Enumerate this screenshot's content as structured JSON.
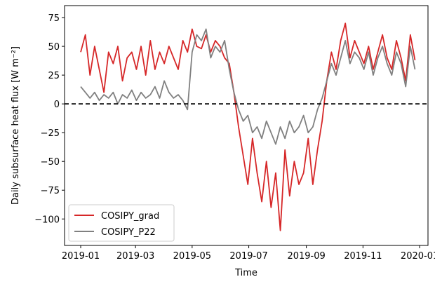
{
  "chart_data": {
    "type": "line",
    "xlabel": "Time",
    "ylabel": "Daily subsurface heat flux [W m⁻²]",
    "x": [
      0,
      5,
      10,
      15,
      20,
      25,
      30,
      35,
      40,
      45,
      50,
      55,
      60,
      65,
      70,
      75,
      80,
      85,
      90,
      95,
      100,
      105,
      110,
      115,
      120,
      125,
      130,
      135,
      140,
      145,
      150,
      155,
      160,
      165,
      170,
      175,
      180,
      185,
      190,
      195,
      200,
      205,
      210,
      215,
      220,
      225,
      230,
      235,
      240,
      245,
      250,
      255,
      260,
      265,
      270,
      275,
      280,
      285,
      290,
      295,
      300,
      305,
      310,
      315,
      320,
      325,
      330,
      335,
      340,
      345,
      350,
      355,
      360
    ],
    "series": [
      {
        "name": "COSIPY_grad",
        "color": "#d62728",
        "values": [
          45,
          60,
          25,
          50,
          30,
          10,
          45,
          35,
          50,
          20,
          40,
          45,
          30,
          50,
          25,
          55,
          30,
          45,
          35,
          50,
          40,
          30,
          55,
          45,
          65,
          50,
          48,
          60,
          45,
          55,
          50,
          40,
          35,
          10,
          -20,
          -45,
          -70,
          -30,
          -60,
          -85,
          -50,
          -90,
          -60,
          -110,
          -40,
          -80,
          -50,
          -70,
          -60,
          -30,
          -70,
          -40,
          -15,
          20,
          45,
          30,
          55,
          70,
          40,
          55,
          45,
          35,
          50,
          30,
          45,
          60,
          40,
          30,
          55,
          40,
          20,
          60,
          38
        ]
      },
      {
        "name": "COSIPY_P22",
        "color": "#808080",
        "values": [
          15,
          10,
          5,
          10,
          3,
          8,
          5,
          10,
          0,
          8,
          5,
          12,
          3,
          10,
          5,
          8,
          15,
          5,
          20,
          10,
          5,
          8,
          3,
          -5,
          45,
          60,
          55,
          65,
          40,
          50,
          45,
          55,
          30,
          10,
          -5,
          -15,
          -10,
          -25,
          -20,
          -30,
          -15,
          -25,
          -35,
          -20,
          -30,
          -15,
          -25,
          -20,
          -10,
          -25,
          -20,
          -5,
          5,
          20,
          35,
          25,
          40,
          55,
          35,
          45,
          40,
          30,
          45,
          25,
          40,
          50,
          35,
          25,
          45,
          35,
          15,
          50,
          30
        ]
      }
    ],
    "xlim": [
      -17.4,
      374
    ],
    "xticks": [
      {
        "value": 0,
        "label": "2019-01"
      },
      {
        "value": 59,
        "label": "2019-03"
      },
      {
        "value": 120,
        "label": "2019-05"
      },
      {
        "value": 181,
        "label": "2019-07"
      },
      {
        "value": 243,
        "label": "2019-09"
      },
      {
        "value": 304,
        "label": "2019-11"
      },
      {
        "value": 365,
        "label": "2020-01"
      }
    ],
    "ylim": [
      -123,
      85.4
    ],
    "yticks": [
      {
        "value": -100,
        "label": "−100"
      },
      {
        "value": -75,
        "label": "−75"
      },
      {
        "value": -50,
        "label": "−50"
      },
      {
        "value": -25,
        "label": "−25"
      },
      0,
      25,
      50,
      75
    ],
    "hline": 0,
    "legend": "lower left"
  }
}
